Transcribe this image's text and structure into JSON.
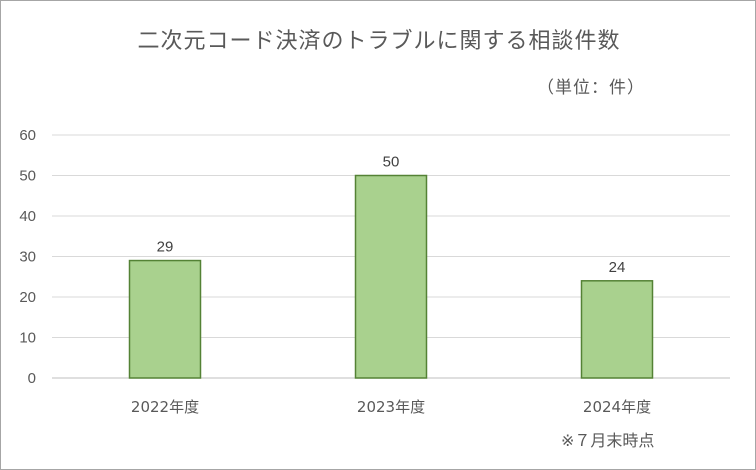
{
  "chart_data": {
    "type": "bar",
    "title": "二次元コード決済のトラブルに関する相談件数",
    "unit_label": "（単位：件）",
    "categories": [
      "2022年度",
      "2023年度",
      "2024年度"
    ],
    "values": [
      29,
      50,
      24
    ],
    "data_labels": [
      "29",
      "50",
      "24"
    ],
    "ylim": [
      0,
      60
    ],
    "yticks": [
      0,
      10,
      20,
      30,
      40,
      50,
      60
    ],
    "grid": true,
    "bar_color": "#a9d18e",
    "bar_edge_color": "#548235",
    "note": "※７月末時点"
  }
}
